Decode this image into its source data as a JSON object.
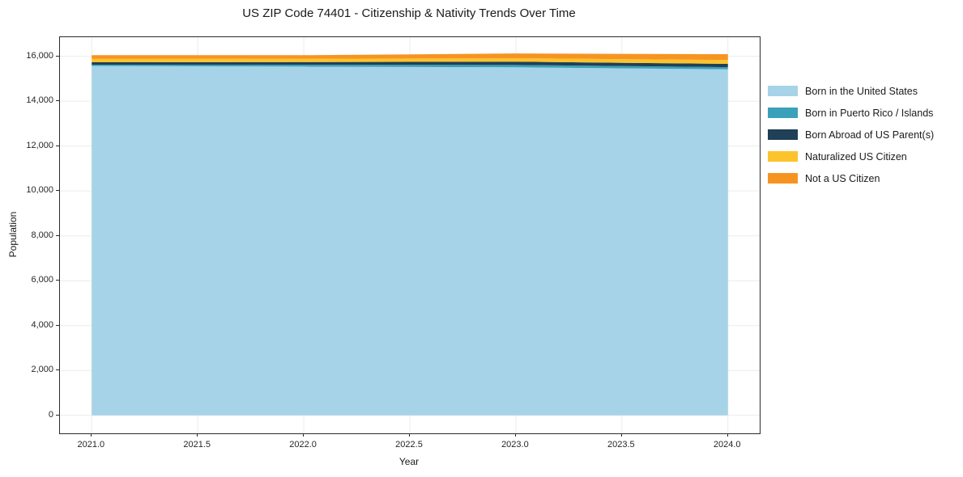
{
  "chart_data": {
    "type": "area",
    "stacked": true,
    "title": "US ZIP Code 74401 - Citizenship & Nativity Trends Over Time",
    "xlabel": "Year",
    "ylabel": "Population",
    "x": [
      2021,
      2022,
      2023,
      2024
    ],
    "series": [
      {
        "name": "Born in the United States",
        "color": "#a6d3e8",
        "values": [
          15570,
          15540,
          15510,
          15420
        ]
      },
      {
        "name": "Born in Puerto Rico / Islands",
        "color": "#3ba1bb",
        "values": [
          55,
          85,
          105,
          95
        ]
      },
      {
        "name": "Born Abroad of US Parent(s)",
        "color": "#1f4056",
        "values": [
          110,
          120,
          145,
          150
        ]
      },
      {
        "name": "Naturalized US Citizen",
        "color": "#fcc32d",
        "values": [
          150,
          145,
          155,
          170
        ]
      },
      {
        "name": "Not a US Citizen",
        "color": "#f79421",
        "values": [
          165,
          160,
          210,
          260
        ]
      }
    ],
    "xlim": [
      2020.85,
      2024.15
    ],
    "ylim": [
      -802,
      16852
    ],
    "xticks": [
      {
        "v": 2021.0,
        "label": "2021.0"
      },
      {
        "v": 2021.5,
        "label": "2021.5"
      },
      {
        "v": 2022.0,
        "label": "2022.0"
      },
      {
        "v": 2022.5,
        "label": "2022.5"
      },
      {
        "v": 2023.0,
        "label": "2023.0"
      },
      {
        "v": 2023.5,
        "label": "2023.5"
      },
      {
        "v": 2024.0,
        "label": "2024.0"
      }
    ],
    "yticks": [
      {
        "v": 0,
        "label": "0"
      },
      {
        "v": 2000,
        "label": "2,000"
      },
      {
        "v": 4000,
        "label": "4,000"
      },
      {
        "v": 6000,
        "label": "6,000"
      },
      {
        "v": 8000,
        "label": "8,000"
      },
      {
        "v": 10000,
        "label": "10,000"
      },
      {
        "v": 12000,
        "label": "12,000"
      },
      {
        "v": 14000,
        "label": "14,000"
      },
      {
        "v": 16000,
        "label": "16,000"
      }
    ],
    "grid": true,
    "legend_position": "right"
  }
}
